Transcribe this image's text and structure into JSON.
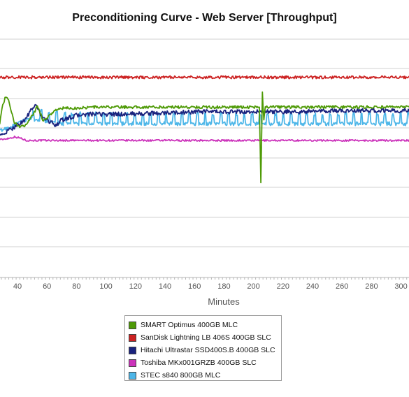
{
  "chart_data": {
    "type": "line",
    "title": "Preconditioning Curve - Web Server [Throughput]",
    "xlabel": "Minutes",
    "ylabel": "",
    "x_ticks": [
      40,
      60,
      80,
      100,
      120,
      140,
      160,
      180,
      200,
      220,
      240,
      260,
      280,
      300
    ],
    "xlim": [
      25,
      310
    ],
    "ylim": [
      0,
      100
    ],
    "grid": true,
    "legend_position": "bottom",
    "series": [
      {
        "name": "SMART Optimus 400GB MLC",
        "color": "#4e9a06",
        "key": "smart",
        "points": [
          [
            25,
            67
          ],
          [
            28,
            65
          ],
          [
            30,
            72
          ],
          [
            32,
            76
          ],
          [
            34,
            74
          ],
          [
            36,
            69
          ],
          [
            38,
            65
          ],
          [
            40,
            64
          ],
          [
            42,
            63
          ],
          [
            45,
            64
          ],
          [
            48,
            66
          ],
          [
            50,
            68
          ],
          [
            52,
            70
          ],
          [
            53,
            72
          ],
          [
            55,
            70
          ],
          [
            57,
            66
          ],
          [
            60,
            67
          ],
          [
            65,
            70
          ],
          [
            70,
            71
          ],
          [
            80,
            71
          ],
          [
            90,
            71.5
          ],
          [
            100,
            71.5
          ],
          [
            120,
            71.5
          ],
          [
            150,
            71.5
          ],
          [
            180,
            71.5
          ],
          [
            200,
            71.5
          ],
          [
            204,
            71.5
          ],
          [
            205,
            40
          ],
          [
            206,
            78
          ],
          [
            207,
            66
          ],
          [
            208,
            71.5
          ],
          [
            220,
            71.5
          ],
          [
            260,
            71.5
          ],
          [
            310,
            71.5
          ]
        ],
        "noise": 0.6
      },
      {
        "name": "SanDisk Lightning LB 406S 400GB SLC",
        "color": "#cc2222",
        "key": "sandisk",
        "points": [
          [
            25,
            84
          ],
          [
            310,
            84
          ]
        ],
        "noise": 0.6
      },
      {
        "name": "Hitachi Ultrastar SSD400S.B 400GB SLC",
        "color": "#1a237e",
        "key": "hitachi",
        "points": [
          [
            25,
            58
          ],
          [
            30,
            60
          ],
          [
            35,
            62
          ],
          [
            40,
            64
          ],
          [
            45,
            66
          ],
          [
            48,
            69
          ],
          [
            50,
            71
          ],
          [
            53,
            72
          ],
          [
            56,
            68
          ],
          [
            60,
            66
          ],
          [
            63,
            65
          ],
          [
            66,
            64
          ],
          [
            70,
            66
          ],
          [
            75,
            67
          ],
          [
            80,
            68
          ],
          [
            90,
            68.5
          ],
          [
            100,
            68.5
          ],
          [
            110,
            68.5
          ],
          [
            140,
            69
          ],
          [
            160,
            69.5
          ],
          [
            200,
            69.5
          ],
          [
            230,
            69.5
          ],
          [
            260,
            70
          ],
          [
            310,
            70
          ]
        ],
        "noise": 0.9
      },
      {
        "name": "Toshiba MKx001GRZB 400GB SLC",
        "color": "#cc33bb",
        "key": "toshiba",
        "points": [
          [
            25,
            57.5
          ],
          [
            30,
            58
          ],
          [
            35,
            58.5
          ],
          [
            38,
            59
          ],
          [
            42,
            58.5
          ],
          [
            46,
            57.5
          ],
          [
            50,
            57.5
          ],
          [
            60,
            57.5
          ],
          [
            80,
            57.5
          ],
          [
            150,
            57.5
          ],
          [
            200,
            57.5
          ],
          [
            250,
            57.5
          ],
          [
            310,
            57.5
          ]
        ],
        "noise": 0.35
      },
      {
        "name": "STEC s840 800GB MLC",
        "color": "#4db6e8",
        "key": "stec",
        "points": [
          [
            25,
            61
          ],
          [
            30,
            62
          ],
          [
            35,
            63
          ],
          [
            40,
            64.5
          ],
          [
            45,
            66
          ],
          [
            50,
            67
          ],
          [
            55,
            68
          ],
          [
            60,
            67.5
          ],
          [
            70,
            66.5
          ],
          [
            80,
            66.5
          ],
          [
            100,
            66.5
          ],
          [
            200,
            66.5
          ],
          [
            310,
            66.5
          ]
        ],
        "noise": 0.8,
        "wave": 2.2
      }
    ]
  }
}
